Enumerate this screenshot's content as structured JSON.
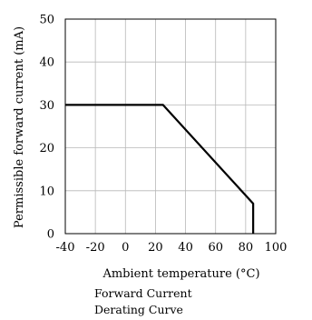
{
  "chart_data": {
    "type": "line",
    "xlabel": "Ambient temperature (°C)",
    "ylabel": "Permissible forward current (mA)",
    "caption_lines": [
      "Forward Current",
      "Derating  Curve"
    ],
    "xlim": [
      -40,
      100
    ],
    "ylim": [
      0,
      50
    ],
    "x_ticks": [
      -40,
      -20,
      0,
      20,
      40,
      60,
      80,
      100
    ],
    "y_ticks": [
      0,
      10,
      20,
      30,
      40,
      50
    ],
    "grid": true,
    "series": [
      {
        "x": [
          -40,
          25,
          85,
          85
        ],
        "y": [
          30,
          30,
          7,
          0
        ]
      }
    ]
  }
}
